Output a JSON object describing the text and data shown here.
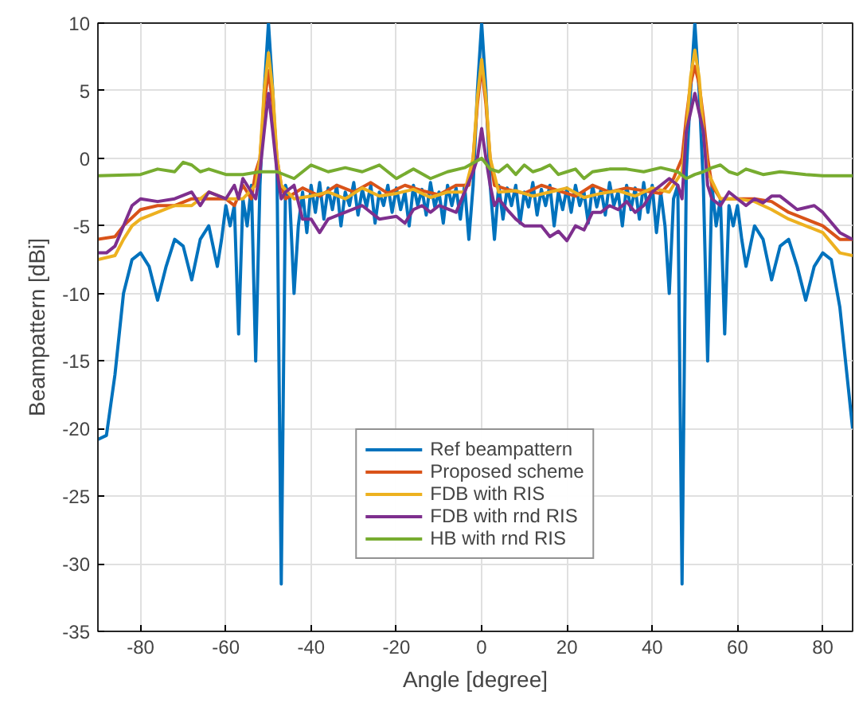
{
  "chart_data": {
    "type": "line",
    "xlabel": "Angle [degree]",
    "ylabel": "Beampattern [dBi]",
    "xlim": [
      -90,
      87
    ],
    "ylim": [
      -35,
      10
    ],
    "xticks": [
      -80,
      -60,
      -40,
      -20,
      0,
      20,
      40,
      60,
      80
    ],
    "yticks": [
      -35,
      -30,
      -25,
      -20,
      -15,
      -10,
      -5,
      0,
      5,
      10
    ],
    "grid": true,
    "legend": "bottom",
    "line_style": "solid",
    "marker": "none",
    "series": [
      {
        "name": "Ref beampattern",
        "color": "#0072bd",
        "x": [
          -90,
          -88,
          -86,
          -84,
          -82,
          -80,
          -78,
          -76,
          -74,
          -72,
          -70,
          -68,
          -66,
          -64,
          -62,
          -61,
          -60,
          -59,
          -58,
          -57,
          -56,
          -55,
          -54,
          -53,
          -52,
          -51,
          -50,
          -49,
          -48,
          -47,
          -46,
          -45,
          -44,
          -43,
          -42,
          -41,
          -40,
          -39,
          -38,
          -37,
          -36,
          -35,
          -34,
          -33,
          -32,
          -31,
          -30,
          -29,
          -28,
          -27,
          -26,
          -25,
          -24,
          -23,
          -22,
          -21,
          -20,
          -19,
          -18,
          -17,
          -16,
          -15,
          -14,
          -13,
          -12,
          -11,
          -10,
          -9,
          -8,
          -7,
          -6,
          -5,
          -4,
          -3,
          -2,
          -1,
          0,
          1,
          2,
          3,
          4,
          5,
          6,
          7,
          8,
          9,
          10,
          11,
          12,
          13,
          14,
          15,
          16,
          17,
          18,
          19,
          20,
          21,
          22,
          23,
          24,
          25,
          26,
          27,
          28,
          29,
          30,
          31,
          32,
          33,
          34,
          35,
          36,
          37,
          38,
          39,
          40,
          41,
          42,
          43,
          44,
          45,
          46,
          47,
          48,
          49,
          50,
          51,
          52,
          53,
          54,
          55,
          56,
          57,
          58,
          59,
          60,
          61,
          62,
          64,
          66,
          68,
          70,
          72,
          74,
          76,
          78,
          80,
          82,
          84,
          86,
          87
        ],
        "values": [
          -20.8,
          -20.5,
          -16,
          -10,
          -7.5,
          -7,
          -8,
          -10.5,
          -8,
          -6,
          -6.5,
          -9,
          -6,
          -5,
          -8,
          -6,
          -3.5,
          -5,
          -3.5,
          -13,
          -3,
          -5,
          -2,
          -15,
          -2,
          5,
          10,
          5,
          -1,
          -31.5,
          -2,
          -3,
          -10,
          -5,
          -2.5,
          -5.5,
          -2,
          -4,
          -1.8,
          -4.5,
          -2.2,
          -3.8,
          -2,
          -5,
          -2.5,
          -3.5,
          -1.8,
          -4.2,
          -2.3,
          -3.6,
          -2,
          -4.8,
          -2.5,
          -3.5,
          -2,
          -4,
          -2.2,
          -3.8,
          -2.5,
          -5,
          -2,
          -3.5,
          -2.3,
          -4.2,
          -1.8,
          -3.6,
          -2.5,
          -4.8,
          -2,
          -3.5,
          -2.2,
          -4.5,
          -2,
          -6,
          -2,
          5,
          10,
          5,
          -2,
          -6,
          -2,
          -4.5,
          -2.2,
          -3.5,
          -2,
          -4.8,
          -2.5,
          -3.6,
          -1.8,
          -4.2,
          -2.3,
          -3.5,
          -2,
          -5,
          -2.5,
          -3.8,
          -2.2,
          -4,
          -2,
          -3.5,
          -2.5,
          -4.8,
          -2,
          -3.6,
          -2.3,
          -4.2,
          -1.8,
          -3.5,
          -2.5,
          -5,
          -2,
          -3.8,
          -2.2,
          -4.5,
          -1.8,
          -4,
          -2,
          -5.5,
          -2.5,
          -5,
          -10,
          -3,
          -2,
          -31.5,
          -1,
          5,
          10,
          5,
          -2,
          -15,
          -2,
          -5,
          -3,
          -13,
          -3.5,
          -5,
          -3.5,
          -6,
          -8,
          -5,
          -6,
          -9,
          -6.5,
          -6,
          -8,
          -10.5,
          -8,
          -7,
          -7.5,
          -11,
          -17,
          -20
        ]
      },
      {
        "name": "Proposed scheme",
        "color": "#d95319",
        "x": [
          -90,
          -86,
          -84,
          -80,
          -76,
          -72,
          -68,
          -64,
          -60,
          -58,
          -56,
          -54,
          -53,
          -52,
          -51,
          -50,
          -49,
          -48,
          -47,
          -46,
          -42,
          -38,
          -34,
          -30,
          -26,
          -22,
          -18,
          -14,
          -10,
          -6,
          -3,
          -2,
          -1,
          0,
          1,
          2,
          3,
          6,
          10,
          14,
          18,
          22,
          26,
          30,
          34,
          38,
          42,
          45,
          47,
          48,
          49,
          50,
          51,
          52,
          53,
          54,
          56,
          60,
          64,
          68,
          72,
          76,
          80,
          84,
          87
        ],
        "values": [
          -6,
          -5.8,
          -5,
          -3.8,
          -3.5,
          -3.5,
          -3,
          -3,
          -3,
          -3.5,
          -2,
          -3,
          -1,
          0,
          4,
          6.5,
          4,
          0,
          -2,
          -3,
          -2.2,
          -2.8,
          -2,
          -2.5,
          -1.8,
          -2.6,
          -2,
          -2.4,
          -2.7,
          -2,
          -2,
          0,
          4,
          6.8,
          4,
          0,
          -2,
          -2.3,
          -2.6,
          -2,
          -2.4,
          -2.8,
          -2,
          -2.5,
          -2.2,
          -2.4,
          -2.6,
          -1.5,
          0,
          3,
          5.5,
          6.8,
          5.5,
          3,
          0,
          -2,
          -3,
          -3,
          -3,
          -3.2,
          -4,
          -4.5,
          -5,
          -6,
          -6
        ]
      },
      {
        "name": "FDB with RIS",
        "color": "#edb120",
        "x": [
          -90,
          -86,
          -84,
          -82,
          -80,
          -76,
          -72,
          -68,
          -64,
          -60,
          -56,
          -53,
          -52,
          -51,
          -50,
          -49,
          -48,
          -47,
          -44,
          -40,
          -36,
          -32,
          -28,
          -24,
          -20,
          -16,
          -12,
          -8,
          -4,
          -2,
          -1,
          0,
          1,
          2,
          4,
          8,
          12,
          16,
          20,
          24,
          28,
          32,
          36,
          40,
          44,
          47,
          48,
          49,
          50,
          51,
          52,
          53,
          56,
          60,
          64,
          68,
          72,
          76,
          80,
          84,
          87
        ],
        "values": [
          -7.5,
          -7.2,
          -6,
          -5,
          -4.5,
          -4,
          -3.5,
          -3.5,
          -2.5,
          -3,
          -3,
          -2,
          0,
          5,
          7.8,
          5,
          0,
          -2,
          -3,
          -2.8,
          -2.5,
          -3,
          -2.2,
          -2.8,
          -2.6,
          -2.3,
          -2.9,
          -2.5,
          -2.5,
          0,
          4.5,
          7.3,
          4.5,
          0,
          -2.5,
          -2.4,
          -2.8,
          -2.5,
          -2.2,
          -2.9,
          -2.6,
          -2.4,
          -2.8,
          -2.2,
          -2.5,
          -1,
          2,
          6,
          8,
          6,
          2,
          -1,
          -3,
          -3,
          -3.2,
          -3.8,
          -4.5,
          -5,
          -5.5,
          -7,
          -7.2
        ]
      },
      {
        "name": "FDB with rnd RIS",
        "color": "#7e2f8e",
        "x": [
          -90,
          -88,
          -86,
          -84,
          -82,
          -80,
          -76,
          -72,
          -68,
          -66,
          -64,
          -60,
          -58,
          -57,
          -56,
          -53,
          -52,
          -51,
          -50,
          -49,
          -48,
          -47,
          -46,
          -44,
          -42,
          -40,
          -38,
          -36,
          -32,
          -28,
          -24,
          -20,
          -18,
          -16,
          -14,
          -12,
          -10,
          -6,
          -4,
          -2,
          -1,
          0,
          1,
          2,
          3,
          4,
          6,
          8,
          10,
          12,
          14,
          16,
          18,
          20,
          22,
          24,
          26,
          28,
          30,
          32,
          34,
          36,
          38,
          40,
          42,
          44,
          46,
          47,
          48,
          50,
          52,
          53,
          54,
          56,
          58,
          60,
          62,
          64,
          66,
          68,
          70,
          74,
          78,
          80,
          84,
          87
        ],
        "values": [
          -7,
          -7,
          -6.5,
          -5,
          -3.5,
          -3,
          -3.2,
          -3,
          -2.5,
          -3.5,
          -2.5,
          -3,
          -2,
          -3,
          -1.5,
          -3,
          -1,
          2,
          4.8,
          2,
          -1,
          -3,
          -2.5,
          -2,
          -4.5,
          -4.5,
          -5.5,
          -4.5,
          -4,
          -3.5,
          -4.5,
          -4.3,
          -4.8,
          -3.8,
          -3.5,
          -4,
          -3.5,
          -4,
          -2.5,
          -1,
          0,
          2.2,
          0,
          -2,
          -3.5,
          -3,
          -3.8,
          -4.5,
          -5,
          -5,
          -5,
          -5.8,
          -5.4,
          -6.1,
          -5,
          -5.3,
          -4,
          -4,
          -3.5,
          -3.8,
          -3.2,
          -4,
          -3.5,
          -2.5,
          -2,
          -1.5,
          -2,
          -3,
          2,
          4.8,
          2,
          -2,
          -3,
          -3.5,
          -2.5,
          -3,
          -3.5,
          -3,
          -3.3,
          -2.8,
          -2.8,
          -3.8,
          -3.5,
          -4,
          -5.5,
          -6
        ]
      },
      {
        "name": "HB with rnd RIS",
        "color": "#77ac30",
        "x": [
          -90,
          -80,
          -76,
          -72,
          -70,
          -68,
          -66,
          -64,
          -60,
          -56,
          -52,
          -48,
          -44,
          -40,
          -36,
          -32,
          -28,
          -24,
          -20,
          -16,
          -12,
          -8,
          -4,
          0,
          2,
          4,
          6,
          8,
          10,
          12,
          14,
          16,
          18,
          20,
          22,
          24,
          26,
          30,
          34,
          38,
          42,
          46,
          48,
          50,
          52,
          54,
          56,
          58,
          60,
          62,
          64,
          66,
          70,
          76,
          80,
          87
        ],
        "values": [
          -1.3,
          -1.2,
          -0.8,
          -1,
          -0.3,
          -0.5,
          -1,
          -0.8,
          -1.2,
          -1.2,
          -1,
          -1,
          -1.5,
          -0.5,
          -1,
          -0.7,
          -1,
          -0.5,
          -1.5,
          -0.8,
          -1.5,
          -1,
          -0.7,
          0,
          -0.8,
          -1,
          -0.5,
          -1.2,
          -0.5,
          -1,
          -0.8,
          -0.5,
          -1.2,
          -1,
          -0.8,
          -1.5,
          -1,
          -0.8,
          -0.8,
          -1,
          -0.7,
          -1,
          -1.5,
          -1.2,
          -1,
          -0.7,
          -0.5,
          -1,
          -1.2,
          -0.8,
          -1,
          -1.2,
          -1,
          -1.2,
          -1.3,
          -1.3
        ]
      }
    ]
  }
}
